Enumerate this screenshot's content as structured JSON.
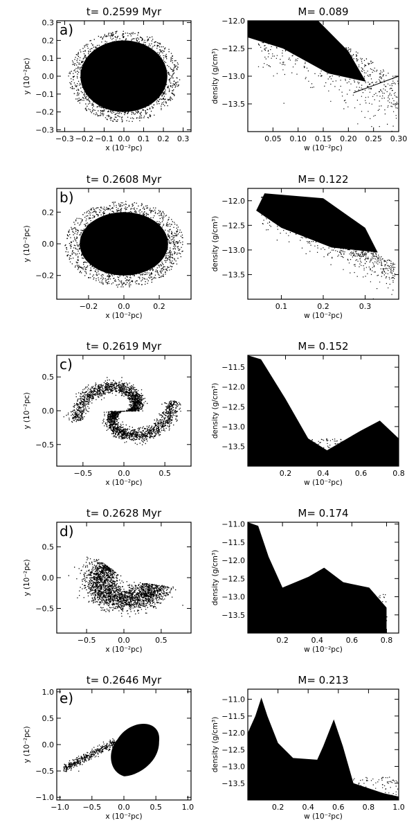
{
  "chart_data": [
    {
      "type": "scatter",
      "row": 0,
      "col": 0,
      "title": "t= 0.2599 Myr",
      "panel_label": "a)",
      "xlabel": "x (10⁻²pc)",
      "ylabel": "y (10⁻²pc)",
      "xlim": [
        -0.34,
        0.34
      ],
      "ylim": [
        -0.31,
        0.31
      ],
      "xticks": [
        -0.3,
        -0.2,
        -0.1,
        0.0,
        0.1,
        0.2,
        0.3
      ],
      "xticklabels": [
        "−0.3",
        "−0.2",
        "−0.1",
        "0.0",
        "0.1",
        "0.2",
        "0.3"
      ],
      "yticks": [
        -0.3,
        -0.2,
        -0.1,
        0.0,
        0.1,
        0.2,
        0.3
      ],
      "yticklabels": [
        "−0.3",
        "−0.2",
        "−0.1",
        "0.0",
        "0.1",
        "0.2",
        "0.3"
      ],
      "description_points": "dense particle cloud roughly circular, radius ~0.25"
    },
    {
      "type": "scatter",
      "row": 0,
      "col": 1,
      "title": "M= 0.089",
      "xlabel": "w (10⁻²pc)",
      "ylabel": "density (g/cm³)",
      "xlim": [
        0.0,
        0.3
      ],
      "ylim": [
        -14.0,
        -12.0
      ],
      "xticks": [
        0.05,
        0.1,
        0.15,
        0.2,
        0.25,
        0.3
      ],
      "xticklabels": [
        "0.05",
        "0.10",
        "0.15",
        "0.20",
        "0.25",
        "0.30"
      ],
      "yticks": [
        -13.5,
        -13.0,
        -12.5,
        -12.0
      ],
      "yticklabels": [
        "−13.5",
        "−13.0",
        "−12.5",
        "−12.0"
      ],
      "fit_line": {
        "x": [
          0.21,
          0.3
        ],
        "y": [
          -13.3,
          -13.0
        ]
      }
    },
    {
      "type": "scatter",
      "row": 1,
      "col": 0,
      "title": "t= 0.2608 Myr",
      "panel_label": "b)",
      "xlabel": "x (10⁻²pc)",
      "ylabel": "y (10⁻²pc)",
      "xlim": [
        -0.38,
        0.38
      ],
      "ylim": [
        -0.35,
        0.35
      ],
      "xticks": [
        -0.2,
        0.0,
        0.2
      ],
      "xticklabels": [
        "−0.2",
        "0.0",
        "0.2"
      ],
      "yticks": [
        -0.2,
        0.0,
        0.2
      ],
      "yticklabels": [
        "−0.2",
        "0.0",
        "0.2"
      ]
    },
    {
      "type": "scatter",
      "row": 1,
      "col": 1,
      "title": "M= 0.122",
      "xlabel": "w (10⁻²pc)",
      "ylabel": "density (g/cm³)",
      "xlim": [
        0.02,
        0.38
      ],
      "ylim": [
        -14.0,
        -11.75
      ],
      "xticks": [
        0.1,
        0.2,
        0.3
      ],
      "xticklabels": [
        "0.1",
        "0.2",
        "0.3"
      ],
      "yticks": [
        -13.5,
        -13.0,
        -12.5,
        -12.0
      ],
      "yticklabels": [
        "−13.5",
        "−13.0",
        "−12.5",
        "−12.0"
      ]
    },
    {
      "type": "scatter",
      "row": 2,
      "col": 0,
      "title": "t= 0.2619 Myr",
      "panel_label": "c)",
      "xlabel": "x (10⁻²pc)",
      "ylabel": "y (10⁻²pc)",
      "xlim": [
        -0.82,
        0.82
      ],
      "ylim": [
        -0.82,
        0.82
      ],
      "xticks": [
        -0.5,
        0.0,
        0.5
      ],
      "xticklabels": [
        "−0.5",
        "0.0",
        "0.5"
      ],
      "yticks": [
        -0.5,
        0.0,
        0.5
      ],
      "yticklabels": [
        "−0.5",
        "0.0",
        "0.5"
      ]
    },
    {
      "type": "scatter",
      "row": 2,
      "col": 1,
      "title": "M= 0.152",
      "xlabel": "w (10⁻²pc)",
      "ylabel": "density (g/cm³)",
      "xlim": [
        0.0,
        0.8
      ],
      "ylim": [
        -14.0,
        -11.2
      ],
      "xticks": [
        0.2,
        0.4,
        0.6,
        0.8
      ],
      "xticklabels": [
        "0.2",
        "0.4",
        "0.6",
        "0.8"
      ],
      "yticks": [
        -13.5,
        -13.0,
        -12.5,
        -12.0,
        -11.5
      ],
      "yticklabels": [
        "−13.5",
        "−13.0",
        "−12.5",
        "−12.0",
        "−11.5"
      ]
    },
    {
      "type": "scatter",
      "row": 3,
      "col": 0,
      "title": "t= 0.2628 Myr",
      "panel_label": "d)",
      "xlabel": "x (10⁻²pc)",
      "ylabel": "y (10⁻²pc)",
      "xlim": [
        -0.9,
        0.9
      ],
      "ylim": [
        -0.9,
        0.9
      ],
      "xticks": [
        -0.5,
        0.0,
        0.5
      ],
      "xticklabels": [
        "−0.5",
        "0.0",
        "0.5"
      ],
      "yticks": [
        -0.5,
        0.0,
        0.5
      ],
      "yticklabels": [
        "−0.5",
        "0.0",
        "0.5"
      ]
    },
    {
      "type": "scatter",
      "row": 3,
      "col": 1,
      "title": "M= 0.174",
      "xlabel": "w (10⁻²pc)",
      "ylabel": "density (g/cm³)",
      "xlim": [
        0.0,
        0.87
      ],
      "ylim": [
        -14.0,
        -10.95
      ],
      "xticks": [
        0.2,
        0.4,
        0.6,
        0.8
      ],
      "xticklabels": [
        "0.2",
        "0.4",
        "0.6",
        "0.8"
      ],
      "yticks": [
        -13.5,
        -13.0,
        -12.5,
        -12.0,
        -11.5,
        -11.0
      ],
      "yticklabels": [
        "−13.5",
        "−13.0",
        "−12.5",
        "−12.0",
        "−11.5",
        "−11.0"
      ]
    },
    {
      "type": "scatter",
      "row": 4,
      "col": 0,
      "title": "t= 0.2646 Myr",
      "panel_label": "e)",
      "xlabel": "x (10⁻²pc)",
      "ylabel": "y (10⁻²pc)",
      "xlim": [
        -1.05,
        1.05
      ],
      "ylim": [
        -1.05,
        1.05
      ],
      "xticks": [
        -1.0,
        -0.5,
        0.0,
        0.5,
        1.0
      ],
      "xticklabels": [
        "−1.0",
        "−0.5",
        "0.0",
        "0.5",
        "1.0"
      ],
      "yticks": [
        -1.0,
        -0.5,
        0.0,
        0.5,
        1.0
      ],
      "yticklabels": [
        "−1.0",
        "−0.5",
        "0.0",
        "0.5",
        "1.0"
      ]
    },
    {
      "type": "scatter",
      "row": 4,
      "col": 1,
      "title": "M= 0.213",
      "xlabel": "w (10⁻²pc)",
      "ylabel": "density (g/cm³)",
      "xlim": [
        0.0,
        1.0
      ],
      "ylim": [
        -14.0,
        -10.7
      ],
      "xticks": [
        0.2,
        0.4,
        0.6,
        0.8,
        1.0
      ],
      "xticklabels": [
        "0.2",
        "0.4",
        "0.6",
        "0.8",
        "1.0"
      ],
      "yticks": [
        -13.5,
        -13.0,
        -12.5,
        -12.0,
        -11.5,
        -11.0
      ],
      "yticklabels": [
        "−13.5",
        "−13.0",
        "−12.5",
        "−12.0",
        "−11.5",
        "−11.0"
      ]
    }
  ]
}
